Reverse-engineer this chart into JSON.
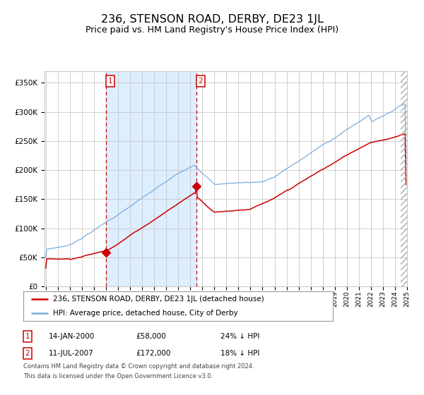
{
  "title": "236, STENSON ROAD, DERBY, DE23 1JL",
  "subtitle": "Price paid vs. HM Land Registry's House Price Index (HPI)",
  "title_fontsize": 11.5,
  "subtitle_fontsize": 9,
  "ylim": [
    0,
    370000
  ],
  "yticks": [
    0,
    50000,
    100000,
    150000,
    200000,
    250000,
    300000,
    350000
  ],
  "ytick_labels": [
    "£0",
    "£50K",
    "£100K",
    "£150K",
    "£200K",
    "£250K",
    "£300K",
    "£350K"
  ],
  "hpi_color": "#7aaddc",
  "price_color": "#cc0000",
  "bg_color": "#ffffff",
  "plot_bg": "#ffffff",
  "grid_color": "#c8c8c8",
  "shade_color": "#ddeeff",
  "legend1": "236, STENSON ROAD, DERBY, DE23 1JL (detached house)",
  "legend2": "HPI: Average price, detached house, City of Derby",
  "table_row1_num": "1",
  "table_row1_date": "14-JAN-2000",
  "table_row1_price": "£58,000",
  "table_row1_hpi": "24% ↓ HPI",
  "table_row2_num": "2",
  "table_row2_date": "11-JUL-2007",
  "table_row2_price": "£172,000",
  "table_row2_hpi": "18% ↓ HPI",
  "footnote1": "Contains HM Land Registry data © Crown copyright and database right 2024.",
  "footnote2": "This data is licensed under the Open Government Licence v3.0.",
  "start_year": 1995,
  "end_year": 2025
}
